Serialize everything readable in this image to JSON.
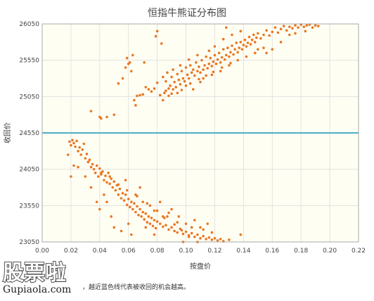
{
  "caption": "，越近蓝色线代表被收回的机会越高。",
  "watermark": {
    "main": "股票啦",
    "sub": "Gupiaola.com"
  },
  "colors": {
    "background": "#fffef3",
    "grid": "#dddddd",
    "points": "#e87722",
    "ref_line": "#4aaec6",
    "watermark_accent": "#e63222"
  },
  "chart_data": {
    "type": "scatter",
    "title": "恒指牛熊证分布图",
    "xlabel": "按盘价",
    "ylabel": "收回价",
    "xlim": [
      0,
      0.22
    ],
    "ylim": [
      23050,
      26050
    ],
    "x_ticks": [
      "0.00",
      "0.02",
      "0.04",
      "0.06",
      "0.08",
      "0.10",
      "0.12",
      "0.14",
      "0.16",
      "0.18",
      "0.20",
      "0.22"
    ],
    "y_ticks": [
      "23050",
      "23550",
      "24050",
      "24550",
      "25050",
      "25550",
      "26050"
    ],
    "grid": true,
    "reference_line": {
      "y": 24550,
      "color": "#4aaec6"
    },
    "series": [
      {
        "name": "",
        "points": [
          [
            0.019,
            24430
          ],
          [
            0.02,
            24380
          ],
          [
            0.021,
            24450
          ],
          [
            0.022,
            24410
          ],
          [
            0.023,
            24360
          ],
          [
            0.024,
            24440
          ],
          [
            0.025,
            24300
          ],
          [
            0.026,
            24350
          ],
          [
            0.027,
            24250
          ],
          [
            0.028,
            24320
          ],
          [
            0.029,
            24400
          ],
          [
            0.03,
            24200
          ],
          [
            0.031,
            24260
          ],
          [
            0.032,
            24150
          ],
          [
            0.018,
            24250
          ],
          [
            0.022,
            24100
          ],
          [
            0.033,
            24180
          ],
          [
            0.034,
            24080
          ],
          [
            0.035,
            24120
          ],
          [
            0.036,
            24050
          ],
          [
            0.037,
            24000
          ],
          [
            0.038,
            24100
          ],
          [
            0.039,
            23950
          ],
          [
            0.04,
            24060
          ],
          [
            0.041,
            23980
          ],
          [
            0.042,
            24020
          ],
          [
            0.043,
            23900
          ],
          [
            0.044,
            23960
          ],
          [
            0.045,
            23870
          ],
          [
            0.046,
            24000
          ],
          [
            0.047,
            23850
          ],
          [
            0.048,
            23920
          ],
          [
            0.049,
            23800
          ],
          [
            0.05,
            23880
          ],
          [
            0.051,
            23760
          ],
          [
            0.052,
            23830
          ],
          [
            0.053,
            23700
          ],
          [
            0.054,
            23780
          ],
          [
            0.055,
            23650
          ],
          [
            0.056,
            23720
          ],
          [
            0.057,
            23620
          ],
          [
            0.058,
            23700
          ],
          [
            0.059,
            23560
          ],
          [
            0.06,
            23640
          ],
          [
            0.061,
            23530
          ],
          [
            0.062,
            23600
          ],
          [
            0.063,
            23500
          ],
          [
            0.064,
            23580
          ],
          [
            0.065,
            23460
          ],
          [
            0.066,
            23540
          ],
          [
            0.067,
            23420
          ],
          [
            0.068,
            23500
          ],
          [
            0.069,
            23400
          ],
          [
            0.07,
            23460
          ],
          [
            0.071,
            23360
          ],
          [
            0.072,
            23440
          ],
          [
            0.073,
            23320
          ],
          [
            0.074,
            23400
          ],
          [
            0.075,
            23300
          ],
          [
            0.076,
            23380
          ],
          [
            0.077,
            23270
          ],
          [
            0.078,
            23350
          ],
          [
            0.079,
            23240
          ],
          [
            0.08,
            23330
          ],
          [
            0.082,
            23300
          ],
          [
            0.084,
            23260
          ],
          [
            0.086,
            23280
          ],
          [
            0.088,
            23220
          ],
          [
            0.09,
            23250
          ],
          [
            0.092,
            23200
          ],
          [
            0.094,
            23180
          ],
          [
            0.096,
            23230
          ],
          [
            0.098,
            23160
          ],
          [
            0.1,
            23190
          ],
          [
            0.102,
            23140
          ],
          [
            0.104,
            23170
          ],
          [
            0.106,
            23120
          ],
          [
            0.108,
            23150
          ],
          [
            0.11,
            23100
          ],
          [
            0.112,
            23130
          ],
          [
            0.114,
            23090
          ],
          [
            0.116,
            23110
          ],
          [
            0.118,
            23080
          ],
          [
            0.12,
            23100
          ],
          [
            0.122,
            23070
          ],
          [
            0.124,
            23090
          ],
          [
            0.126,
            23060
          ],
          [
            0.13,
            23080
          ],
          [
            0.138,
            23150
          ],
          [
            0.03,
            23950
          ],
          [
            0.032,
            24150
          ],
          [
            0.034,
            23800
          ],
          [
            0.038,
            23600
          ],
          [
            0.04,
            23500
          ],
          [
            0.043,
            23700
          ],
          [
            0.048,
            23400
          ],
          [
            0.05,
            23250
          ],
          [
            0.055,
            23200
          ],
          [
            0.06,
            23300
          ],
          [
            0.062,
            23150
          ],
          [
            0.065,
            23700
          ],
          [
            0.07,
            23600
          ],
          [
            0.072,
            23250
          ],
          [
            0.078,
            23150
          ],
          [
            0.084,
            23400
          ],
          [
            0.09,
            23500
          ],
          [
            0.095,
            23400
          ],
          [
            0.1,
            23300
          ],
          [
            0.106,
            23350
          ],
          [
            0.11,
            23250
          ],
          [
            0.115,
            23300
          ],
          [
            0.098,
            23050
          ],
          [
            0.02,
            23950
          ],
          [
            0.025,
            24080
          ],
          [
            0.045,
            23600
          ],
          [
            0.058,
            23900
          ],
          [
            0.068,
            23800
          ],
          [
            0.075,
            23550
          ],
          [
            0.082,
            23600
          ],
          [
            0.088,
            23450
          ],
          [
            0.094,
            23320
          ],
          [
            0.104,
            23250
          ],
          [
            0.112,
            23220
          ],
          [
            0.118,
            23180
          ],
          [
            0.108,
            23050
          ],
          [
            0.078,
            23480
          ],
          [
            0.085,
            23380
          ],
          [
            0.092,
            23290
          ],
          [
            0.097,
            23210
          ],
          [
            0.102,
            23120
          ],
          [
            0.041,
            24000
          ],
          [
            0.047,
            23950
          ],
          [
            0.053,
            23840
          ],
          [
            0.059,
            23760
          ],
          [
            0.066,
            23680
          ],
          [
            0.073,
            23580
          ],
          [
            0.08,
            23480
          ],
          [
            0.087,
            23400
          ],
          [
            0.034,
            24850
          ],
          [
            0.04,
            24770
          ],
          [
            0.041,
            24750
          ],
          [
            0.045,
            24770
          ],
          [
            0.05,
            24800
          ],
          [
            0.053,
            25230
          ],
          [
            0.056,
            25300
          ],
          [
            0.058,
            25450
          ],
          [
            0.059,
            25580
          ],
          [
            0.06,
            25500
          ],
          [
            0.061,
            25520
          ],
          [
            0.062,
            25400
          ],
          [
            0.063,
            25620
          ],
          [
            0.064,
            25000
          ],
          [
            0.065,
            24930
          ],
          [
            0.066,
            25060
          ],
          [
            0.068,
            25070
          ],
          [
            0.07,
            25080
          ],
          [
            0.071,
            25520
          ],
          [
            0.072,
            25180
          ],
          [
            0.074,
            25150
          ],
          [
            0.076,
            25120
          ],
          [
            0.078,
            25160
          ],
          [
            0.079,
            25880
          ],
          [
            0.08,
            25950
          ],
          [
            0.08,
            25240
          ],
          [
            0.082,
            25070
          ],
          [
            0.083,
            25780
          ],
          [
            0.084,
            25320
          ],
          [
            0.085,
            25100
          ],
          [
            0.086,
            25130
          ],
          [
            0.087,
            25380
          ],
          [
            0.088,
            25160
          ],
          [
            0.089,
            25200
          ],
          [
            0.09,
            25090
          ],
          [
            0.09,
            25320
          ],
          [
            0.091,
            25420
          ],
          [
            0.092,
            25250
          ],
          [
            0.093,
            25180
          ],
          [
            0.094,
            25360
          ],
          [
            0.095,
            25280
          ],
          [
            0.096,
            25220
          ],
          [
            0.097,
            25400
          ],
          [
            0.098,
            25300
          ],
          [
            0.099,
            25260
          ],
          [
            0.1,
            25450
          ],
          [
            0.101,
            25350
          ],
          [
            0.102,
            25300
          ],
          [
            0.103,
            25480
          ],
          [
            0.104,
            25380
          ],
          [
            0.105,
            25420
          ],
          [
            0.106,
            25340
          ],
          [
            0.107,
            25520
          ],
          [
            0.108,
            25400
          ],
          [
            0.109,
            25460
          ],
          [
            0.11,
            25380
          ],
          [
            0.111,
            25550
          ],
          [
            0.112,
            25420
          ],
          [
            0.113,
            25480
          ],
          [
            0.114,
            25600
          ],
          [
            0.115,
            25440
          ],
          [
            0.116,
            25500
          ],
          [
            0.117,
            25580
          ],
          [
            0.118,
            25470
          ],
          [
            0.119,
            25530
          ],
          [
            0.12,
            25620
          ],
          [
            0.121,
            25500
          ],
          [
            0.122,
            25560
          ],
          [
            0.123,
            25650
          ],
          [
            0.124,
            25520
          ],
          [
            0.125,
            25590
          ],
          [
            0.126,
            25700
          ],
          [
            0.127,
            25560
          ],
          [
            0.128,
            25620
          ],
          [
            0.129,
            25720
          ],
          [
            0.13,
            25600
          ],
          [
            0.131,
            25660
          ],
          [
            0.132,
            25750
          ],
          [
            0.133,
            25630
          ],
          [
            0.134,
            25700
          ],
          [
            0.135,
            25790
          ],
          [
            0.136,
            25660
          ],
          [
            0.137,
            25720
          ],
          [
            0.138,
            25800
          ],
          [
            0.139,
            25700
          ],
          [
            0.14,
            25760
          ],
          [
            0.141,
            25830
          ],
          [
            0.142,
            25740
          ],
          [
            0.143,
            25790
          ],
          [
            0.144,
            25870
          ],
          [
            0.145,
            25770
          ],
          [
            0.146,
            25830
          ],
          [
            0.147,
            25900
          ],
          [
            0.148,
            25800
          ],
          [
            0.149,
            25860
          ],
          [
            0.15,
            25920
          ],
          [
            0.152,
            25850
          ],
          [
            0.154,
            25900
          ],
          [
            0.156,
            25960
          ],
          [
            0.158,
            25890
          ],
          [
            0.16,
            25940
          ],
          [
            0.162,
            26000
          ],
          [
            0.164,
            25930
          ],
          [
            0.166,
            25980
          ],
          [
            0.168,
            26020
          ],
          [
            0.17,
            25960
          ],
          [
            0.172,
            26010
          ],
          [
            0.174,
            25990
          ],
          [
            0.176,
            26030
          ],
          [
            0.178,
            26000
          ],
          [
            0.18,
            26040
          ],
          [
            0.182,
            26010
          ],
          [
            0.184,
            26030
          ],
          [
            0.186,
            26040
          ],
          [
            0.188,
            26000
          ],
          [
            0.19,
            26030
          ],
          [
            0.192,
            26020
          ],
          [
            0.128,
            26000
          ],
          [
            0.15,
            25700
          ],
          [
            0.156,
            25650
          ],
          [
            0.16,
            25700
          ],
          [
            0.166,
            25800
          ],
          [
            0.172,
            25900
          ],
          [
            0.176,
            25920
          ],
          [
            0.183,
            25950
          ],
          [
            0.1,
            25200
          ],
          [
            0.105,
            25150
          ],
          [
            0.11,
            25250
          ],
          [
            0.094,
            25100
          ],
          [
            0.088,
            25060
          ],
          [
            0.112,
            25300
          ],
          [
            0.118,
            25350
          ],
          [
            0.124,
            25400
          ],
          [
            0.13,
            25480
          ],
          [
            0.136,
            25550
          ],
          [
            0.142,
            25600
          ],
          [
            0.148,
            25650
          ],
          [
            0.154,
            25720
          ],
          [
            0.12,
            25740
          ],
          [
            0.126,
            25840
          ],
          [
            0.132,
            25900
          ],
          [
            0.138,
            25950
          ],
          [
            0.116,
            25680
          ],
          [
            0.084,
            25000
          ],
          [
            0.096,
            25480
          ],
          [
            0.102,
            25560
          ],
          [
            0.108,
            25620
          ],
          [
            0.091,
            25150
          ],
          [
            0.086,
            25260
          ],
          [
            0.097,
            25140
          ],
          [
            0.103,
            25230
          ],
          [
            0.109,
            25290
          ],
          [
            0.114,
            25340
          ],
          [
            0.119,
            25390
          ],
          [
            0.125,
            25450
          ],
          [
            0.131,
            25510
          ]
        ]
      }
    ]
  }
}
